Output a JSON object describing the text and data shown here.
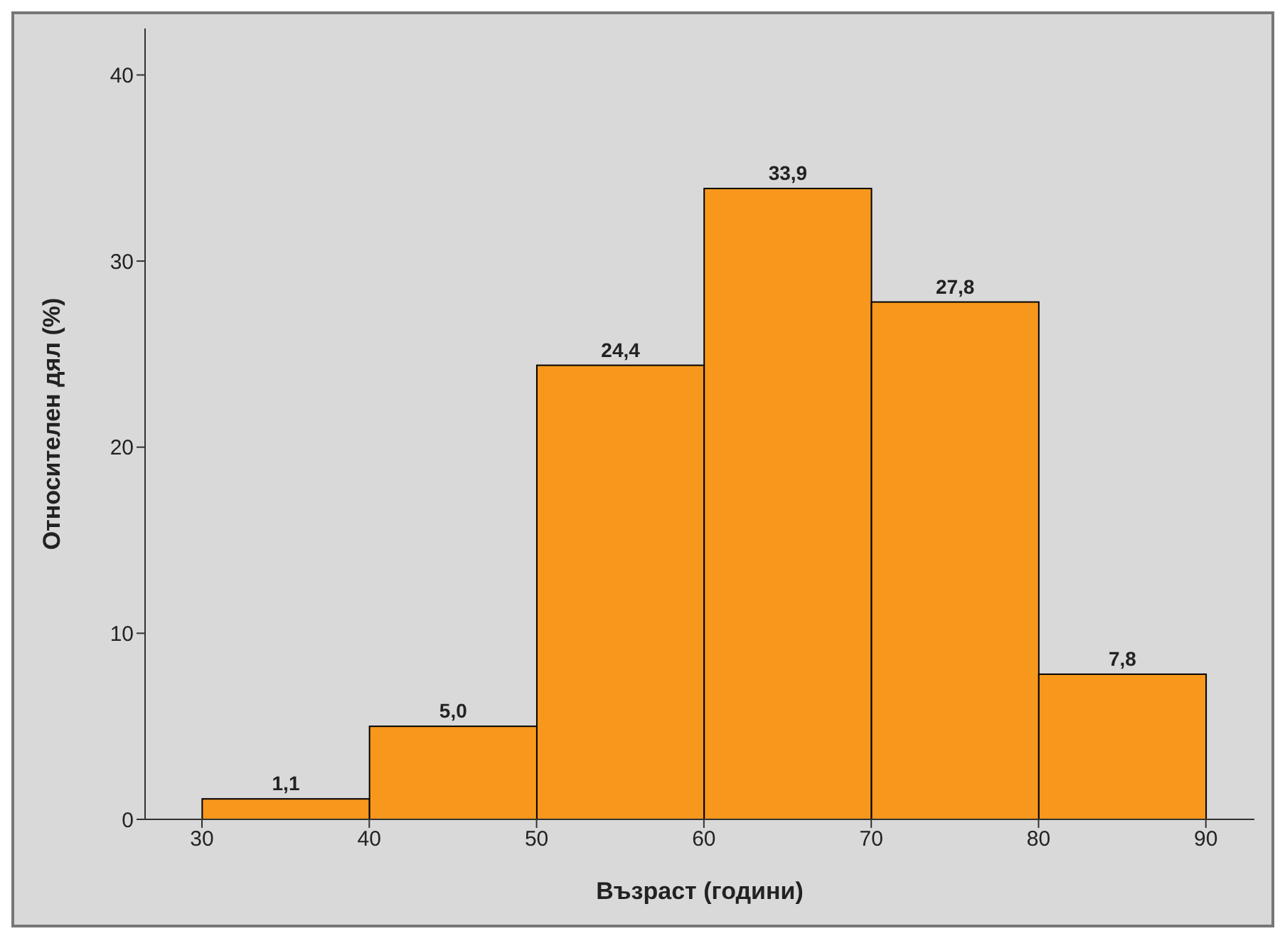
{
  "chart_data": {
    "type": "histogram",
    "xlabel": "Възраст (години)",
    "ylabel": "Относителен дял (%)",
    "bins": [
      30,
      40,
      50,
      60,
      70,
      80,
      90
    ],
    "values": [
      1.1,
      5.0,
      24.4,
      33.9,
      27.8,
      7.8
    ],
    "value_labels": [
      "1,1",
      "5,0",
      "24,4",
      "33,9",
      "27,8",
      "7,8"
    ],
    "color": "#f7981d",
    "xlim": [
      26.6,
      92.9
    ],
    "xticks": [
      30,
      40,
      50,
      60,
      70,
      80,
      90
    ],
    "ylim": [
      0,
      42.5
    ],
    "yticks": [
      0,
      10,
      20,
      30,
      40
    ],
    "grid": false,
    "legend": false
  }
}
